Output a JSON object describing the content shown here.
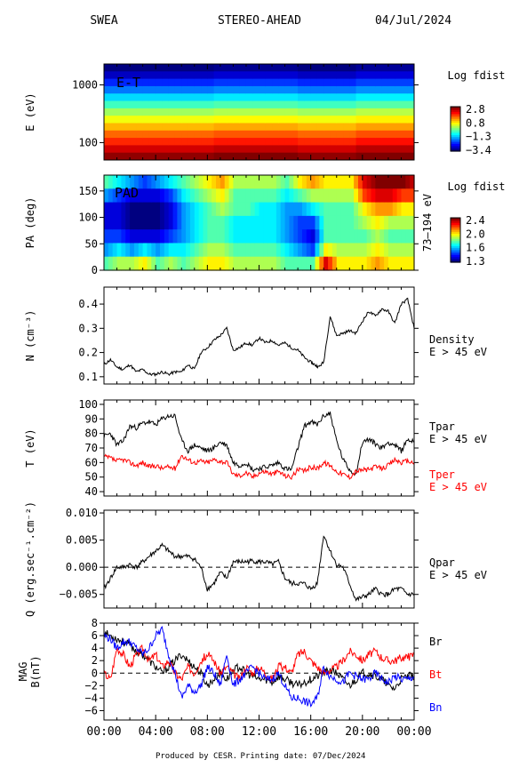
{
  "header": {
    "instrument": "SWEA",
    "spacecraft": "STEREO-AHEAD",
    "date": "04/Jul/2024"
  },
  "footer": {
    "produced_by": "Produced by CESR.",
    "printing_date": "Printing date: 07/Dec/2024"
  },
  "time_axis": {
    "tick_labels": [
      "00:00",
      "04:00",
      "08:00",
      "12:00",
      "16:00",
      "20:00",
      "00:00"
    ],
    "range_hours": [
      0,
      24
    ]
  },
  "colors": {
    "tpar": "#000000",
    "tper": "#ff0000",
    "br": "#000000",
    "bt": "#ff0000",
    "bn": "#0000ff"
  },
  "chart_data": [
    {
      "type": "heatmap",
      "id": "energy_time",
      "panel_label": "E-T",
      "ylabel": "E (eV)",
      "yscale": "log",
      "ylim": [
        50,
        2300
      ],
      "yticks": [
        100,
        1000
      ],
      "ytick_labels": [
        "100",
        "1000"
      ],
      "colorbar": {
        "title": "Log fdist",
        "ticks": [
          2.8,
          0.8,
          -1.3,
          -3.4
        ],
        "tick_labels": [
          "2.8",
          "0.8",
          "−1.3",
          "−3.4"
        ]
      },
      "energy_bands_eV": [
        2000,
        1500,
        1100,
        830,
        620,
        460,
        340,
        255,
        190,
        140,
        105,
        78,
        58
      ],
      "band_log_fdist": [
        -3.4,
        -3.0,
        -2.4,
        -1.9,
        -1.3,
        -0.7,
        -0.1,
        0.4,
        0.9,
        1.4,
        1.8,
        2.3,
        2.7
      ]
    },
    {
      "type": "heatmap",
      "id": "pitch_angle",
      "panel_label": "PAD",
      "ylabel": "PA (deg)",
      "ylim": [
        0,
        180
      ],
      "yticks": [
        0,
        50,
        100,
        150
      ],
      "ytick_labels": [
        "0",
        "50",
        "100",
        "150"
      ],
      "right_label": "73–194 eV",
      "colorbar": {
        "title": "Log fdist",
        "ticks": [
          2.4,
          2.0,
          1.6,
          1.3
        ],
        "tick_labels": [
          "2.4",
          "2.0",
          "1.6",
          "1.3"
        ]
      },
      "time_hours": [
        0,
        1,
        2,
        3,
        4,
        5,
        6,
        7,
        8,
        9,
        10,
        11,
        12,
        13,
        14,
        15,
        16,
        17,
        18,
        19,
        20,
        21,
        22,
        23,
        24
      ],
      "pitch_angles_deg": [
        180,
        150,
        120,
        90,
        60,
        30,
        0
      ],
      "log_fdist": [
        [
          1.8,
          1.6,
          1.4,
          1.4,
          1.5,
          1.6,
          1.8
        ],
        [
          1.7,
          1.5,
          1.4,
          1.4,
          1.5,
          1.7,
          1.9
        ],
        [
          1.6,
          1.4,
          1.3,
          1.3,
          1.4,
          1.6,
          1.9
        ],
        [
          1.5,
          1.4,
          1.3,
          1.3,
          1.4,
          1.7,
          2.0
        ],
        [
          1.6,
          1.4,
          1.3,
          1.3,
          1.4,
          1.6,
          1.8
        ],
        [
          1.7,
          1.5,
          1.4,
          1.4,
          1.5,
          1.7,
          1.9
        ],
        [
          1.8,
          1.7,
          1.6,
          1.6,
          1.6,
          1.7,
          1.8
        ],
        [
          1.9,
          1.8,
          1.7,
          1.7,
          1.7,
          1.8,
          1.9
        ],
        [
          2.0,
          1.9,
          1.8,
          1.8,
          1.8,
          1.9,
          2.0
        ],
        [
          2.1,
          2.0,
          1.9,
          1.8,
          1.8,
          1.9,
          2.0
        ],
        [
          1.9,
          1.8,
          1.8,
          1.7,
          1.7,
          1.8,
          1.9
        ],
        [
          1.9,
          1.8,
          1.8,
          1.7,
          1.7,
          1.8,
          1.9
        ],
        [
          1.9,
          1.8,
          1.7,
          1.7,
          1.7,
          1.8,
          1.9
        ],
        [
          1.9,
          1.8,
          1.7,
          1.7,
          1.7,
          1.8,
          1.9
        ],
        [
          1.8,
          1.7,
          1.6,
          1.6,
          1.6,
          1.7,
          1.8
        ],
        [
          2.0,
          1.8,
          1.6,
          1.5,
          1.5,
          1.6,
          1.8
        ],
        [
          2.1,
          1.9,
          1.7,
          1.5,
          1.4,
          1.5,
          1.8
        ],
        [
          2.0,
          1.9,
          1.8,
          1.8,
          1.8,
          2.0,
          2.3
        ],
        [
          2.0,
          1.9,
          1.8,
          1.8,
          1.8,
          1.9,
          2.0
        ],
        [
          2.0,
          1.9,
          1.8,
          1.8,
          1.8,
          1.9,
          2.0
        ],
        [
          2.3,
          2.2,
          2.0,
          1.9,
          1.8,
          1.9,
          2.0
        ],
        [
          2.4,
          2.3,
          2.1,
          2.0,
          1.9,
          2.0,
          2.1
        ],
        [
          2.4,
          2.3,
          2.1,
          1.9,
          1.8,
          1.9,
          2.0
        ],
        [
          2.4,
          2.2,
          2.0,
          1.9,
          1.8,
          1.9,
          2.0
        ],
        [
          2.3,
          2.2,
          2.0,
          1.9,
          1.8,
          1.9,
          2.0
        ]
      ]
    },
    {
      "type": "line",
      "id": "density",
      "ylabel": "N (cm⁻³)",
      "ylim": [
        0.07,
        0.47
      ],
      "yticks": [
        0.1,
        0.2,
        0.3,
        0.4
      ],
      "ytick_labels": [
        "0.1",
        "0.2",
        "0.3",
        "0.4"
      ],
      "series": [
        {
          "name": "Density",
          "subtitle": "E > 45 eV",
          "x": [
            0,
            0.5,
            1,
            1.5,
            2,
            2.5,
            3,
            3.5,
            4,
            4.5,
            5,
            5.5,
            6,
            6.5,
            7,
            7.5,
            8,
            8.5,
            9,
            9.5,
            10,
            10.5,
            11,
            11.5,
            12,
            12.5,
            13,
            13.5,
            14,
            14.5,
            15,
            15.5,
            16,
            16.3,
            16.6,
            17,
            17.5,
            18,
            18.5,
            19,
            19.5,
            20,
            20.5,
            21,
            21.5,
            22,
            22.5,
            23,
            23.5,
            24
          ],
          "y": [
            0.15,
            0.17,
            0.14,
            0.13,
            0.15,
            0.12,
            0.13,
            0.11,
            0.11,
            0.12,
            0.11,
            0.12,
            0.12,
            0.15,
            0.13,
            0.2,
            0.22,
            0.25,
            0.27,
            0.3,
            0.21,
            0.22,
            0.24,
            0.23,
            0.26,
            0.24,
            0.25,
            0.23,
            0.24,
            0.22,
            0.21,
            0.18,
            0.16,
            0.15,
            0.14,
            0.16,
            0.35,
            0.27,
            0.28,
            0.29,
            0.28,
            0.33,
            0.37,
            0.35,
            0.38,
            0.37,
            0.32,
            0.4,
            0.42,
            0.3
          ]
        }
      ]
    },
    {
      "type": "line",
      "id": "temperature",
      "ylabel": "T (eV)",
      "ylim": [
        37,
        103
      ],
      "yticks": [
        40,
        50,
        60,
        70,
        80,
        90,
        100
      ],
      "ytick_labels": [
        "40",
        "50",
        "60",
        "70",
        "80",
        "90",
        "100"
      ],
      "series": [
        {
          "name": "Tpar",
          "subtitle": "E > 45 eV",
          "x": [
            0,
            0.5,
            1,
            1.5,
            2,
            2.5,
            3,
            3.5,
            4,
            4.5,
            5,
            5.5,
            6,
            6.5,
            7,
            7.5,
            8,
            8.5,
            9,
            9.5,
            10,
            10.5,
            11,
            11.5,
            12,
            12.5,
            13,
            13.5,
            14,
            14.5,
            15,
            15.5,
            16,
            16.5,
            17,
            17.5,
            18,
            18.5,
            19,
            19.5,
            20,
            20.5,
            21,
            21.5,
            22,
            22.5,
            23,
            23.5,
            24
          ],
          "y": [
            78,
            80,
            72,
            75,
            85,
            84,
            87,
            88,
            86,
            90,
            92,
            92,
            75,
            68,
            72,
            70,
            68,
            70,
            74,
            72,
            60,
            58,
            60,
            55,
            56,
            57,
            58,
            60,
            56,
            55,
            70,
            85,
            88,
            86,
            92,
            94,
            75,
            62,
            55,
            52,
            74,
            76,
            73,
            70,
            74,
            72,
            68,
            76,
            74
          ]
        },
        {
          "name": "Tper",
          "subtitle": "E > 45 eV",
          "x": [
            0,
            0.5,
            1,
            1.5,
            2,
            2.5,
            3,
            3.5,
            4,
            4.5,
            5,
            5.5,
            6,
            6.5,
            7,
            7.5,
            8,
            8.5,
            9,
            9.5,
            10,
            10.5,
            11,
            11.5,
            12,
            12.5,
            13,
            13.5,
            14,
            14.5,
            15,
            15.5,
            16,
            16.5,
            17,
            17.5,
            18,
            18.5,
            19,
            19.5,
            20,
            20.5,
            21,
            21.5,
            22,
            22.5,
            23,
            23.5,
            24
          ],
          "y": [
            64,
            63,
            61,
            62,
            60,
            58,
            60,
            57,
            58,
            56,
            57,
            56,
            65,
            62,
            60,
            61,
            60,
            62,
            61,
            60,
            52,
            51,
            53,
            50,
            53,
            54,
            52,
            54,
            51,
            50,
            55,
            54,
            57,
            56,
            60,
            58,
            54,
            52,
            50,
            54,
            55,
            55,
            57,
            56,
            58,
            62,
            60,
            61,
            60
          ]
        }
      ]
    },
    {
      "type": "line",
      "id": "heat_flux",
      "ylabel": "Q (erg.sec⁻¹.cm⁻²)",
      "ylim": [
        -0.0075,
        0.0105
      ],
      "yticks": [
        -0.005,
        0,
        0.005,
        0.01
      ],
      "ytick_labels": [
        "−0.005",
        "0.000",
        "0.005",
        "0.010"
      ],
      "series": [
        {
          "name": "Qpar",
          "subtitle": "E > 45 eV",
          "x": [
            0,
            0.5,
            1,
            1.5,
            2,
            2.5,
            3,
            3.5,
            4,
            4.5,
            5,
            5.5,
            6,
            6.5,
            7,
            7.5,
            8,
            8.5,
            9,
            9.5,
            10,
            10.5,
            11,
            11.5,
            12,
            12.5,
            13,
            13.5,
            14,
            14.5,
            15,
            15.5,
            16,
            16.5,
            17,
            17.5,
            18,
            18.5,
            19,
            19.5,
            20,
            20.5,
            21,
            21.5,
            22,
            22.5,
            23,
            23.5,
            24
          ],
          "y": [
            -0.004,
            -0.002,
            0.0,
            0.0,
            0.0005,
            0.0,
            0.001,
            0.002,
            0.003,
            0.004,
            0.003,
            0.002,
            0.002,
            0.002,
            0.0015,
            0.0,
            -0.004,
            -0.003,
            -0.001,
            -0.002,
            0.001,
            0.001,
            0.001,
            0.0012,
            0.001,
            0.001,
            0.0005,
            0.001,
            -0.002,
            -0.003,
            -0.003,
            -0.003,
            -0.004,
            -0.003,
            0.006,
            0.003,
            0.0005,
            0.0,
            -0.003,
            -0.006,
            -0.0055,
            -0.005,
            -0.004,
            -0.005,
            -0.005,
            -0.004,
            -0.004,
            -0.005,
            -0.005
          ]
        }
      ]
    },
    {
      "type": "line",
      "id": "magnetic_field",
      "ylabel": "MAG B(nT)",
      "ylim": [
        -7.5,
        8
      ],
      "yticks": [
        -6,
        -4,
        -2,
        0,
        2,
        4,
        6,
        8
      ],
      "ytick_labels": [
        "−6",
        "−4",
        "−2",
        "0",
        "2",
        "4",
        "6",
        "8"
      ],
      "series": [
        {
          "name": "Br",
          "x": [
            0,
            0.5,
            1,
            1.5,
            2,
            2.5,
            3,
            3.5,
            4,
            4.5,
            5,
            5.5,
            6,
            6.5,
            7,
            7.5,
            8,
            8.5,
            9,
            9.5,
            10,
            10.5,
            11,
            11.5,
            12,
            12.5,
            13,
            13.5,
            14,
            14.5,
            15,
            15.5,
            16,
            16.5,
            17,
            17.5,
            18,
            18.5,
            19,
            19.5,
            20,
            20.5,
            21,
            21.5,
            22,
            22.5,
            23,
            23.5,
            24
          ],
          "y": [
            6.5,
            6.0,
            5.5,
            5.0,
            4.5,
            3.5,
            3.0,
            2.0,
            1.0,
            0.0,
            1.0,
            2.0,
            3.0,
            2.0,
            1.0,
            0.0,
            -2.0,
            -1.0,
            0.0,
            -1.0,
            0.5,
            1.0,
            0.0,
            -0.5,
            -1.0,
            -1.0,
            -1.5,
            -0.5,
            -1.0,
            -1.5,
            -2.0,
            -1.5,
            -1.0,
            -0.5,
            0.0,
            0.5,
            0.0,
            -1.0,
            -2.0,
            -1.0,
            0.0,
            0.0,
            -0.5,
            -1.0,
            -2.0,
            -2.5,
            -1.0,
            -0.5,
            -0.5
          ]
        },
        {
          "name": "Bt",
          "x": [
            0,
            0.5,
            1,
            1.5,
            2,
            2.5,
            3,
            3.5,
            4,
            4.5,
            5,
            5.5,
            6,
            6.5,
            7,
            7.5,
            8,
            8.5,
            9,
            9.5,
            10,
            10.5,
            11,
            11.5,
            12,
            12.5,
            13,
            13.5,
            14,
            14.5,
            15,
            15.5,
            16,
            16.5,
            17,
            17.5,
            18,
            18.5,
            19,
            19.5,
            20,
            20.5,
            21,
            21.5,
            22,
            22.5,
            23,
            23.5,
            24
          ],
          "y": [
            0.0,
            -1.0,
            4.0,
            3.0,
            1.0,
            3.0,
            4.0,
            2.0,
            3.0,
            1.0,
            2.0,
            0.0,
            -1.0,
            1.0,
            0.0,
            2.0,
            3.0,
            2.0,
            0.0,
            1.0,
            0.0,
            -1.0,
            1.0,
            0.0,
            1.0,
            0.0,
            -1.0,
            1.0,
            1.0,
            0.0,
            3.0,
            3.5,
            2.0,
            1.0,
            0.0,
            0.5,
            1.0,
            2.0,
            3.5,
            3.0,
            2.0,
            3.0,
            3.5,
            2.5,
            2.0,
            2.0,
            2.5,
            2.5,
            3.0
          ]
        },
        {
          "name": "Bn",
          "x": [
            0,
            0.5,
            1,
            1.5,
            2,
            2.5,
            3,
            3.5,
            4,
            4.5,
            5,
            5.5,
            6,
            6.5,
            7,
            7.5,
            8,
            8.5,
            9,
            9.5,
            10,
            10.5,
            11,
            11.5,
            12,
            12.5,
            13,
            13.5,
            14,
            14.5,
            15,
            15.5,
            16,
            16.5,
            17,
            17.5,
            18,
            18.5,
            19,
            19.5,
            20,
            20.5,
            21,
            21.5,
            22,
            22.5,
            23,
            23.5,
            24
          ],
          "y": [
            6.0,
            5.5,
            4.0,
            5.0,
            5.0,
            4.0,
            3.0,
            4.0,
            6.0,
            7.0,
            3.0,
            0.0,
            -4.0,
            -2.0,
            -3.0,
            -2.0,
            1.0,
            0.0,
            -2.0,
            3.0,
            -2.0,
            -1.0,
            0.0,
            1.0,
            0.0,
            -1.0,
            -1.0,
            0.0,
            -2.0,
            -4.0,
            -4.0,
            -4.5,
            -5.0,
            -4.0,
            1.0,
            -0.5,
            -1.0,
            -1.5,
            0.0,
            -0.5,
            -1.0,
            -1.0,
            0.0,
            -1.0,
            -1.5,
            -0.5,
            -1.0,
            -1.0,
            -0.5
          ]
        }
      ]
    }
  ]
}
